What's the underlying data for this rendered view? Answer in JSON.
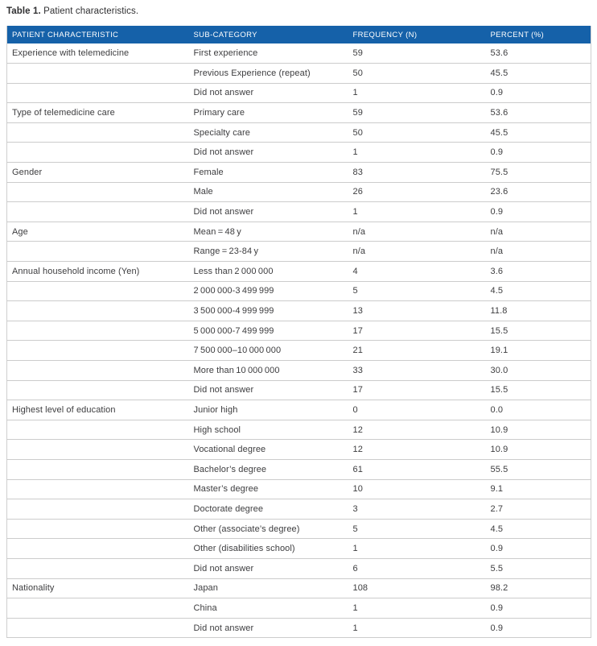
{
  "title": {
    "label": "Table 1.",
    "text": "Patient characteristics."
  },
  "colors": {
    "header_bg": "#1561a9",
    "header_text": "#ffffff",
    "row_border": "#cccccc",
    "body_text": "#3d3d3f"
  },
  "table": {
    "columns": {
      "characteristic": "PATIENT CHARACTERISTIC",
      "subcategory": "SUB-CATEGORY",
      "frequency": "FREQUENCY (N)",
      "percent": "PERCENT (%)"
    },
    "rows": [
      [
        "Experience with telemedicine",
        "First experience",
        "59",
        "53.6"
      ],
      [
        "",
        "Previous Experience (repeat)",
        "50",
        "45.5"
      ],
      [
        "",
        "Did not answer",
        "1",
        "0.9"
      ],
      [
        "Type of telemedicine care",
        "Primary care",
        "59",
        "53.6"
      ],
      [
        "",
        "Specialty care",
        "50",
        "45.5"
      ],
      [
        "",
        "Did not answer",
        "1",
        "0.9"
      ],
      [
        "Gender",
        "Female",
        "83",
        "75.5"
      ],
      [
        "",
        "Male",
        "26",
        "23.6"
      ],
      [
        "",
        "Did not answer",
        "1",
        "0.9"
      ],
      [
        "Age",
        "Mean = 48 y",
        "n/a",
        "n/a"
      ],
      [
        "",
        "Range = 23-84 y",
        "n/a",
        "n/a"
      ],
      [
        "Annual household income (Yen)",
        "Less than 2 000 000",
        "4",
        "3.6"
      ],
      [
        "",
        "2 000 000-3 499 999",
        "5",
        "4.5"
      ],
      [
        "",
        "3 500 000-4 999 999",
        "13",
        "11.8"
      ],
      [
        "",
        "5 000 000-7 499 999",
        "17",
        "15.5"
      ],
      [
        "",
        "7 500 000–10 000 000",
        "21",
        "19.1"
      ],
      [
        "",
        "More than 10 000 000",
        "33",
        "30.0"
      ],
      [
        "",
        "Did not answer",
        "17",
        "15.5"
      ],
      [
        "Highest level of education",
        "Junior high",
        "0",
        "0.0"
      ],
      [
        "",
        "High school",
        "12",
        "10.9"
      ],
      [
        "",
        "Vocational degree",
        "12",
        "10.9"
      ],
      [
        "",
        "Bachelor’s degree",
        "61",
        "55.5"
      ],
      [
        "",
        "Master’s degree",
        "10",
        "9.1"
      ],
      [
        "",
        "Doctorate degree",
        "3",
        "2.7"
      ],
      [
        "",
        "Other (associate’s degree)",
        "5",
        "4.5"
      ],
      [
        "",
        "Other (disabilities school)",
        "1",
        "0.9"
      ],
      [
        "",
        "Did not answer",
        "6",
        "5.5"
      ],
      [
        "Nationality",
        "Japan",
        "108",
        "98.2"
      ],
      [
        "",
        "China",
        "1",
        "0.9"
      ],
      [
        "",
        "Did not answer",
        "1",
        "0.9"
      ]
    ]
  }
}
